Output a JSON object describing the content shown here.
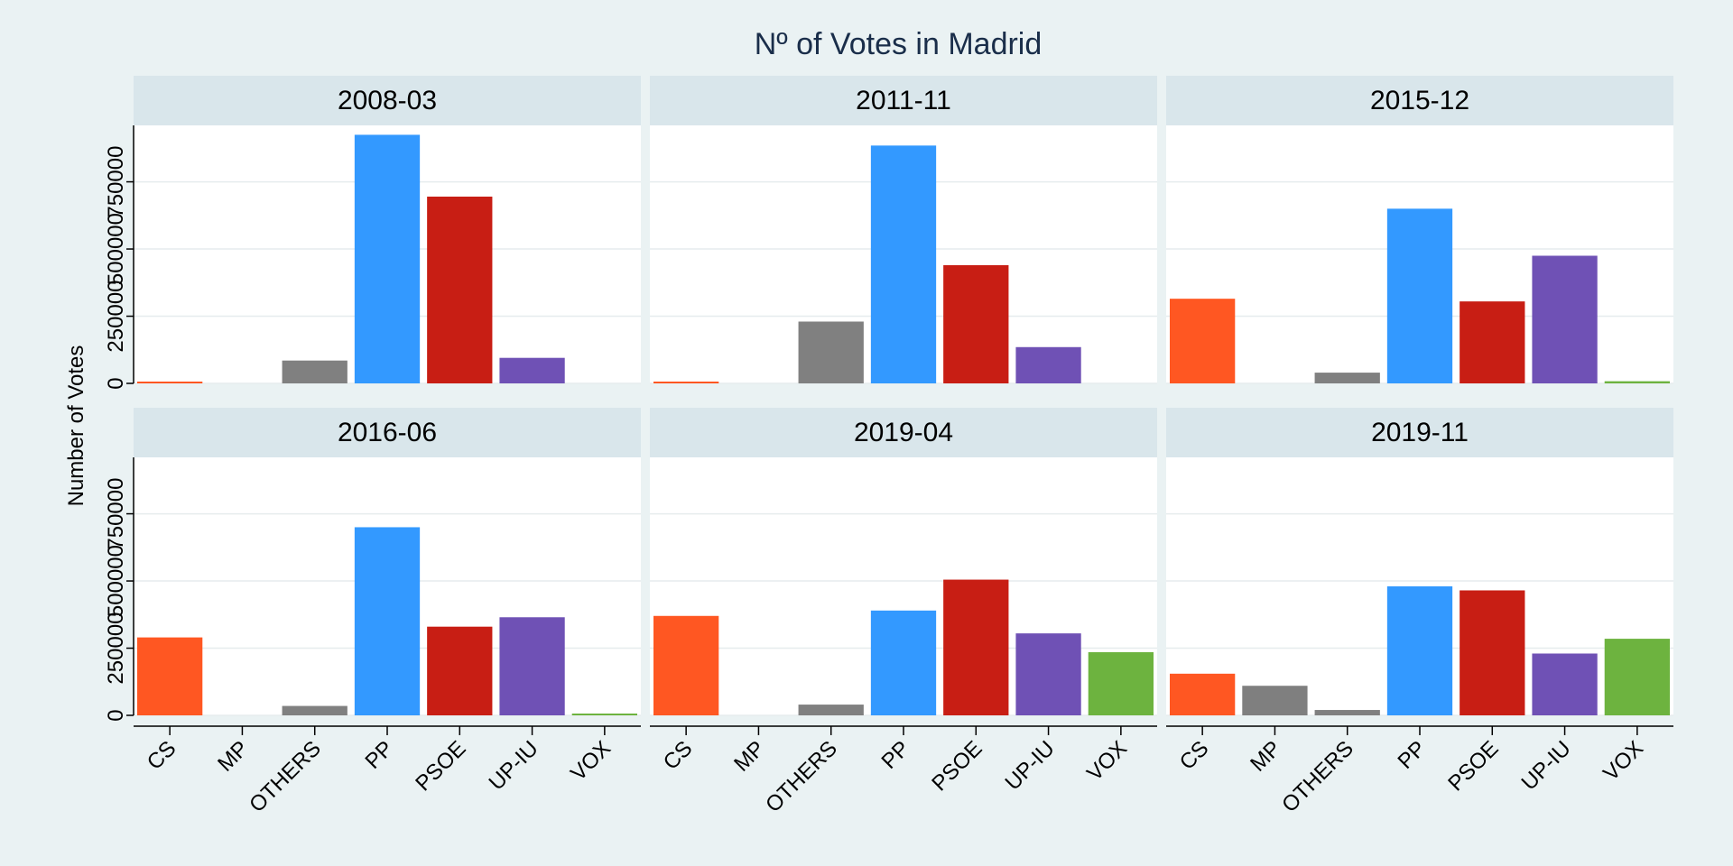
{
  "chart_data": {
    "type": "bar",
    "title": "Nº of Votes in Madrid",
    "ylabel": "Number of Votes",
    "xlabel": "",
    "categories": [
      "CS",
      "MP",
      "OTHERS",
      "PP",
      "PSOE",
      "UP-IU",
      "VOX"
    ],
    "yticks": [
      0,
      250000,
      500000,
      750000
    ],
    "ytick_labels": [
      "0",
      "250000",
      "500000",
      "750000"
    ],
    "ylim": [
      0,
      960000
    ],
    "grid": true,
    "legend": "none",
    "colors": {
      "CS": "#ff5722",
      "MP": "#7f7f7f",
      "OTHERS": "#808080",
      "PP": "#3399ff",
      "PSOE": "#c81e14",
      "UP-IU": "#6f51b5",
      "VOX": "#6db33f"
    },
    "panels": [
      {
        "title": "2008-03",
        "values": [
          5000,
          0,
          85000,
          925000,
          695000,
          95000,
          0
        ]
      },
      {
        "title": "2011-11",
        "values": [
          5000,
          0,
          230000,
          885000,
          440000,
          135000,
          0
        ]
      },
      {
        "title": "2015-12",
        "values": [
          315000,
          0,
          40000,
          650000,
          305000,
          475000,
          8000
        ]
      },
      {
        "title": "2016-06",
        "values": [
          290000,
          0,
          35000,
          700000,
          330000,
          365000,
          5000
        ]
      },
      {
        "title": "2019-04",
        "values": [
          370000,
          0,
          40000,
          390000,
          505000,
          305000,
          235000
        ]
      },
      {
        "title": "2019-11",
        "values": [
          155000,
          110000,
          20000,
          480000,
          465000,
          230000,
          285000
        ]
      }
    ]
  }
}
